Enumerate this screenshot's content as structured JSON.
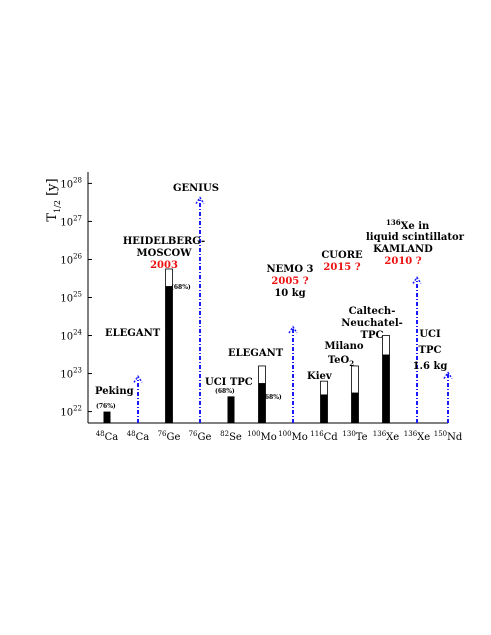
{
  "chart_data": {
    "type": "bar",
    "ylabel": {
      "main": "T",
      "sub": "1/2",
      "unit": " [y]"
    },
    "yscale": "log",
    "ylim_exp": [
      21.7,
      28.3
    ],
    "y_ticks": [
      {
        "base": "10",
        "exp": "22"
      },
      {
        "base": "10",
        "exp": "23"
      },
      {
        "base": "10",
        "exp": "24"
      },
      {
        "base": "10",
        "exp": "25"
      },
      {
        "base": "10",
        "exp": "26"
      },
      {
        "base": "10",
        "exp": "27"
      },
      {
        "base": "10",
        "exp": "28"
      }
    ],
    "categories": [
      {
        "mass": "48",
        "el": "Ca"
      },
      {
        "mass": "48",
        "el": "Ca"
      },
      {
        "mass": "76",
        "el": "Ge"
      },
      {
        "mass": "76",
        "el": "Ge"
      },
      {
        "mass": "82",
        "el": "Se"
      },
      {
        "mass": "100",
        "el": "Mo"
      },
      {
        "mass": "100",
        "el": "Mo"
      },
      {
        "mass": "116",
        "el": "Cd"
      },
      {
        "mass": "130",
        "el": "Te"
      },
      {
        "mass": "136",
        "el": "Xe"
      },
      {
        "mass": "136",
        "el": "Xe"
      },
      {
        "mass": "150",
        "el": "Nd"
      }
    ],
    "bars": [
      {
        "cat": 0,
        "kind": "measured",
        "value_exp": 22.0
      },
      {
        "cat": 1,
        "kind": "projected",
        "value_exp": 22.9
      },
      {
        "cat": 2,
        "kind": "measured",
        "value_exp": 25.3,
        "upper_exp": 25.75
      },
      {
        "cat": 3,
        "kind": "projected",
        "value_exp": 27.6
      },
      {
        "cat": 4,
        "kind": "measured",
        "value_exp": 22.4
      },
      {
        "cat": 5,
        "kind": "measured",
        "value_exp": 22.75,
        "upper_exp": 23.2
      },
      {
        "cat": 6,
        "kind": "projected",
        "value_exp": 24.2
      },
      {
        "cat": 7,
        "kind": "measured",
        "value_exp": 22.45,
        "upper_exp": 22.8
      },
      {
        "cat": 8,
        "kind": "measured",
        "value_exp": 22.5,
        "upper_exp": 23.2
      },
      {
        "cat": 9,
        "kind": "measured",
        "value_exp": 23.5,
        "upper_exp": 24.0
      },
      {
        "cat": 10,
        "kind": "projected",
        "value_exp": 25.5
      },
      {
        "cat": 11,
        "kind": "projected",
        "value_exp": 23.0
      }
    ],
    "annotations": {
      "peking": "Peking",
      "peking_cl": "(76%)",
      "elegant_ca": "ELEGANT",
      "genius": "GENIUS",
      "hm1": "HEIDELBERG-",
      "hm2": "MOSCOW",
      "hm_year": "2003",
      "ge_cl": "(68%)",
      "uci_tpc_se": "UCI TPC",
      "se_cl": "(68%)",
      "elegant_mo": "ELEGANT",
      "mo_cl": "(68%)",
      "nemo": "NEMO 3",
      "nemo_year": "2005 ?",
      "nemo_mass": "10 kg",
      "kiev": "Kiev",
      "cuore": "CUORE",
      "cuore_year": "2015 ?",
      "milano": "Milano",
      "teo2_a": "TeO",
      "teo2_b": "2",
      "xe_mass": "136",
      "xe_rest": "Xe in",
      "liquid": "liquid scintillator",
      "kamland": "KAMLAND",
      "kamland_year": "2010 ?",
      "caltech1": "Caltech-",
      "caltech2": "Neuchatel-",
      "caltech3": "TPC",
      "uci": "UCI",
      "tpc": "TPC",
      "nd_mass": "1.6 kg"
    },
    "colors": {
      "measured": "#000000",
      "projected": "#1a1aff",
      "red_text": "#ee1111"
    }
  }
}
